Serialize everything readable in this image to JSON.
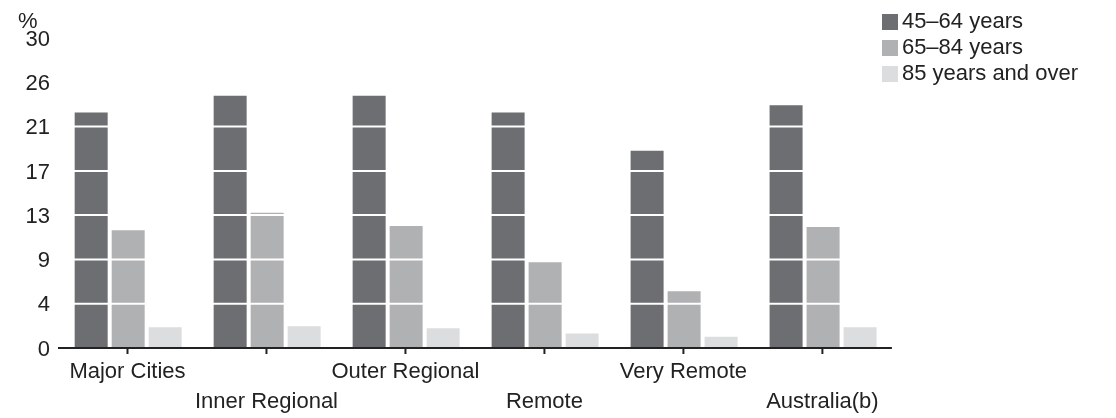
{
  "chart_data": {
    "type": "bar",
    "ylabel": "%",
    "categories": [
      "Major Cities",
      "Inner Regional",
      "Outer Regional",
      "Remote",
      "Very Remote",
      "Australia(b)"
    ],
    "series": [
      {
        "name": "45–64 years",
        "color": "#6d6e71",
        "values": [
          22.8,
          24.4,
          24.4,
          22.8,
          19.1,
          23.5
        ]
      },
      {
        "name": "65–84 years",
        "color": "#b0b1b3",
        "values": [
          11.4,
          13.1,
          11.8,
          8.3,
          5.5,
          11.7
        ]
      },
      {
        "name": "85 years and over",
        "color": "#dcdddf",
        "values": [
          2.0,
          2.1,
          1.9,
          1.4,
          1.1,
          2.0
        ]
      }
    ],
    "ylim": [
      0,
      30
    ],
    "yticks": [
      0,
      {
        "value": 4.29,
        "label": "4"
      },
      {
        "value": 8.57,
        "label": "9"
      },
      {
        "value": 12.86,
        "label": "13"
      },
      {
        "value": 17.14,
        "label": "17"
      },
      {
        "value": 21.43,
        "label": "21"
      },
      {
        "value": 25.71,
        "label": "26"
      },
      30
    ],
    "grid": "y",
    "legend": "top right"
  }
}
